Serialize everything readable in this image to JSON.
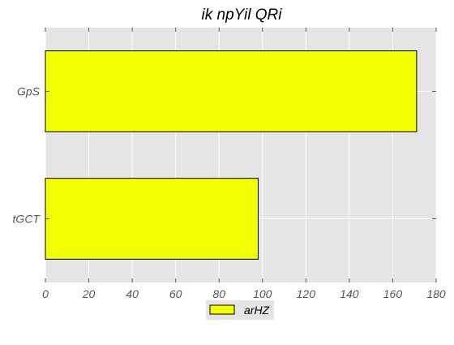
{
  "chart_data": {
    "type": "bar",
    "orientation": "horizontal",
    "title": "ik npYil QRi",
    "xlabel": "",
    "ylabel": "",
    "categories": [
      "tGCT",
      "GpS"
    ],
    "series": [
      {
        "name": "arHZ",
        "values": [
          98,
          171
        ],
        "color": "#f2ff00"
      }
    ],
    "xlim": [
      0,
      180
    ],
    "xticks": [
      0,
      20,
      40,
      60,
      80,
      100,
      120,
      140,
      160,
      180
    ],
    "grid": true,
    "legend_position": "bottom-center",
    "colors": {
      "plot_background": "#e5e5e5",
      "grid": "#ffffff",
      "bar_edge": "#000000",
      "legend_background": "#e5e5e5"
    }
  }
}
